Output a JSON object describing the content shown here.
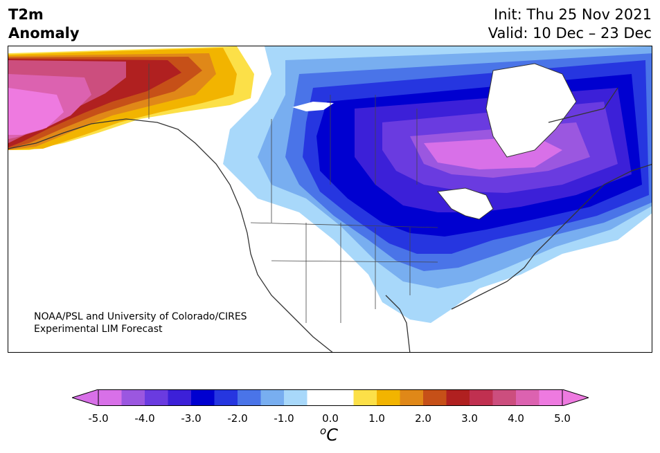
{
  "title": {
    "left_line1": "T2m",
    "left_line2": "Anomaly",
    "right_line1": "Init: Thu 25 Nov 2021",
    "right_line2": "Valid: 10 Dec – 23 Dec"
  },
  "credit": {
    "line1": "NOAA/PSL and University of Colorado/CIRES",
    "line2": "Experimental LIM Forecast"
  },
  "colorbar": {
    "unit_sup": "o",
    "unit_main": "C",
    "tick_labels": [
      "-5.0",
      "-4.0",
      "-3.0",
      "-2.0",
      "-1.0",
      "0.0",
      "1.0",
      "2.0",
      "3.0",
      "4.0",
      "5.0"
    ],
    "colors": [
      "#d870e8",
      "#9b57e0",
      "#6a3be0",
      "#3c20d8",
      "#0000d0",
      "#2636e0",
      "#4a74e8",
      "#78aef0",
      "#a8d8fa",
      "#ffffff",
      "#ffffff",
      "#fce048",
      "#f2b400",
      "#e08818",
      "#c65018",
      "#b02020",
      "#c03050",
      "#cc4e7e",
      "#dc62b0",
      "#ee7ae0"
    ]
  },
  "map": {
    "region": "North America",
    "colors": {
      "anom_m5": "#d870e8",
      "anom_m4": "#9b57e0",
      "anom_m3": "#6a3be0",
      "anom_m2_5": "#3c20d8",
      "anom_m2": "#0000d0",
      "anom_m1_5": "#2636e0",
      "anom_m1": "#4a74e8",
      "anom_m0_5": "#78aef0",
      "anom_m0_25": "#a8d8fa",
      "anom_p1": "#fce048",
      "anom_p1_5": "#f2b400",
      "anom_p2": "#e08818",
      "anom_p3": "#c65018",
      "anom_p3_5": "#b02020",
      "anom_p4": "#cc4e7e",
      "anom_p5": "#ee7ae0",
      "coast": "#333333"
    }
  }
}
